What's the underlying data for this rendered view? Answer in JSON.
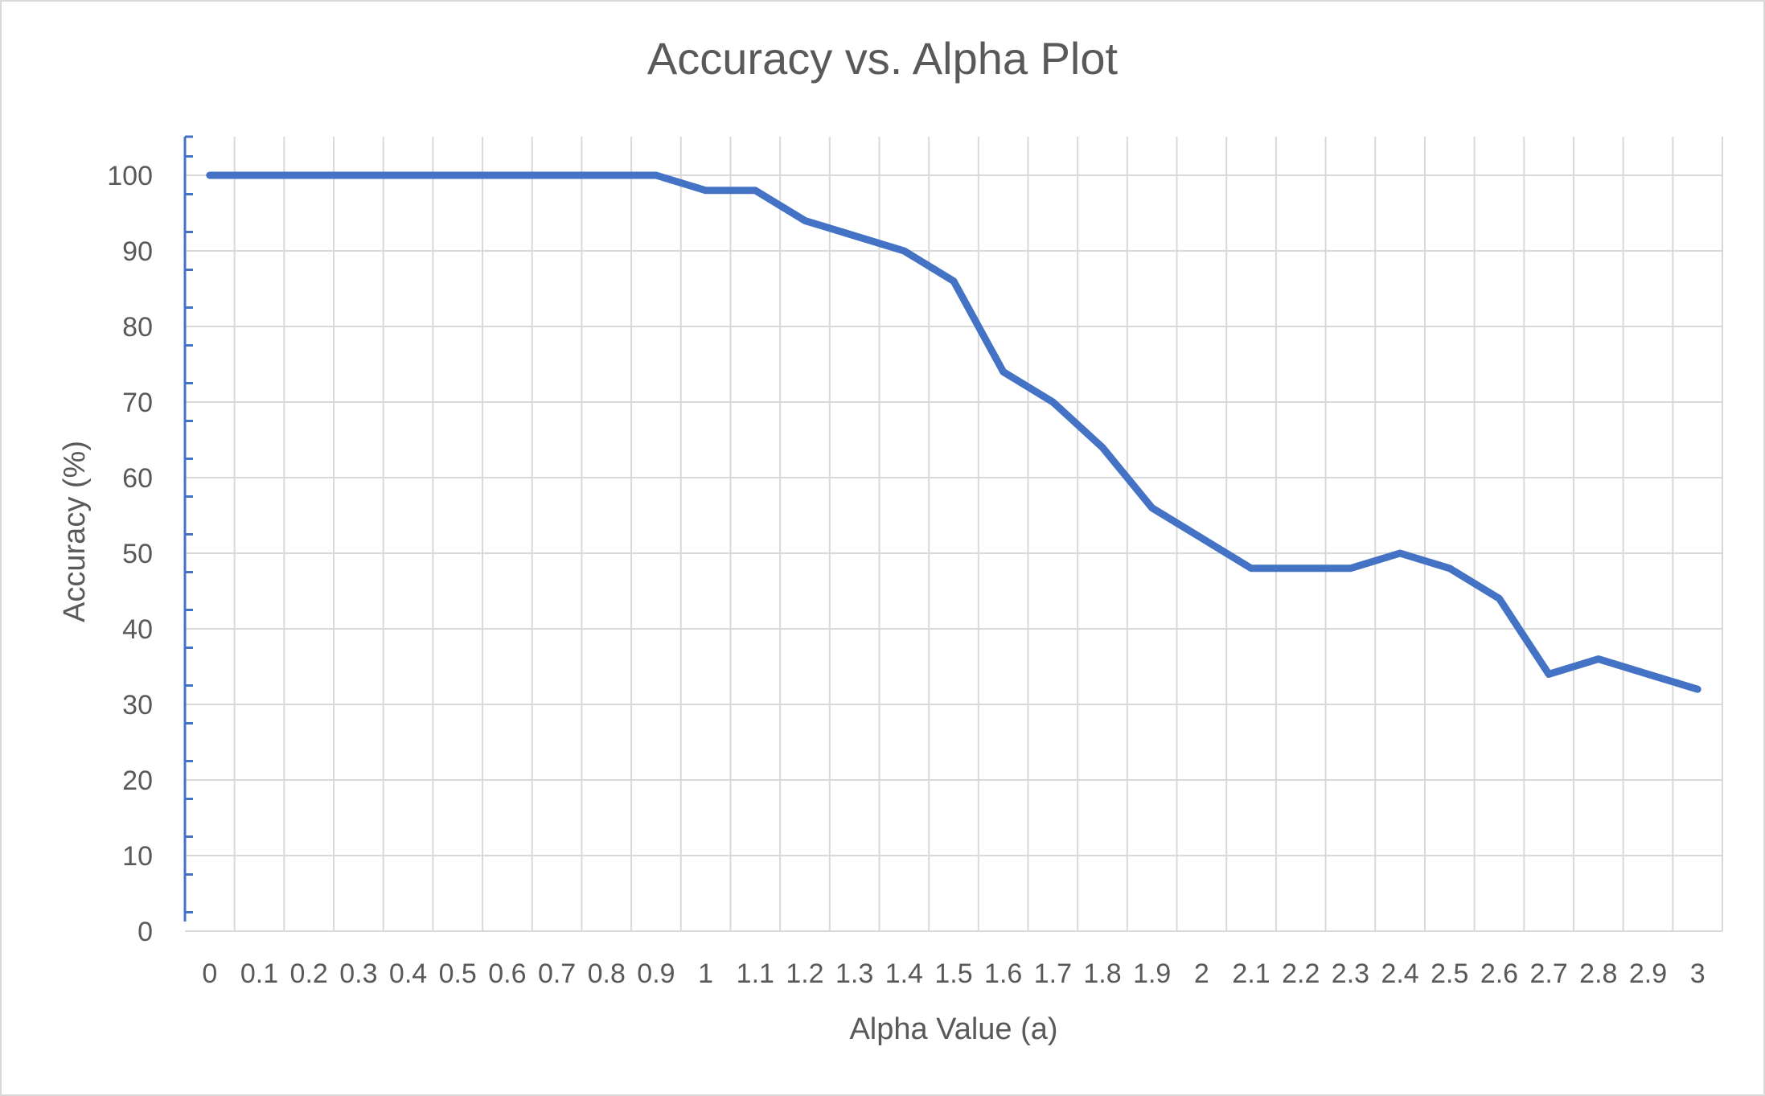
{
  "chart_data": {
    "type": "line",
    "title": "Accuracy vs. Alpha Plot",
    "xlabel": "Alpha Value (a)",
    "ylabel": "Accuracy (%)",
    "x": [
      "0",
      "0.1",
      "0.2",
      "0.3",
      "0.4",
      "0.5",
      "0.6",
      "0.7",
      "0.8",
      "0.9",
      "1",
      "1.1",
      "1.2",
      "1.3",
      "1.4",
      "1.5",
      "1.6",
      "1.7",
      "1.8",
      "1.9",
      "2",
      "2.1",
      "2.2",
      "2.3",
      "2.4",
      "2.5",
      "2.6",
      "2.7",
      "2.8",
      "2.9",
      "3"
    ],
    "series": [
      {
        "values": [
          100,
          100,
          100,
          100,
          100,
          100,
          100,
          100,
          100,
          100,
          98,
          98,
          94,
          92,
          90,
          86,
          74,
          70,
          64,
          56,
          52,
          48,
          48,
          48,
          50,
          48,
          44,
          34,
          36,
          34,
          32
        ]
      }
    ],
    "ylim": [
      0,
      100
    ],
    "yticks": [
      "0",
      "10",
      "20",
      "30",
      "40",
      "50",
      "60",
      "70",
      "80",
      "90",
      "100"
    ],
    "grid": true,
    "legend": "none",
    "colors": {
      "line": "#4472c4",
      "axis": "#4472c4",
      "grid": "#d9d9d9",
      "text": "#595959"
    }
  }
}
